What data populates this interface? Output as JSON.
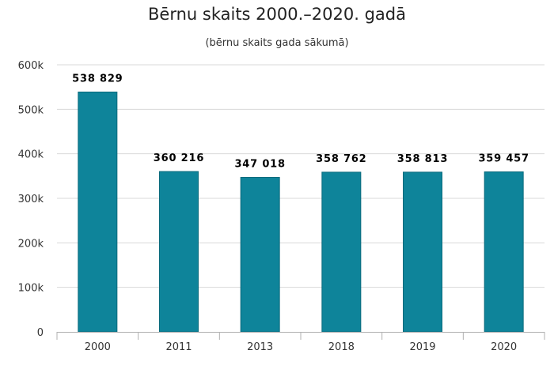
{
  "chart_data": {
    "type": "bar",
    "title": "Bērnu skaits 2000.–2020. gadā",
    "subtitle": "(bērnu skaits gada sākumā)",
    "categories": [
      "2000",
      "2011",
      "2013",
      "2018",
      "2019",
      "2020"
    ],
    "values": [
      538829,
      360216,
      347018,
      358762,
      358813,
      359457
    ],
    "data_labels": [
      "538 829",
      "360 216",
      "347 018",
      "358 762",
      "358 813",
      "359 457"
    ],
    "y_ticks": [
      0,
      100000,
      200000,
      300000,
      400000,
      500000,
      600000
    ],
    "y_tick_labels": [
      "0",
      "100k",
      "200k",
      "300k",
      "400k",
      "500k",
      "600k"
    ],
    "ylim": [
      0,
      600000
    ],
    "xlabel": "",
    "ylabel": "",
    "grid": true,
    "legend": "none",
    "bar_color": "#0e849a"
  }
}
